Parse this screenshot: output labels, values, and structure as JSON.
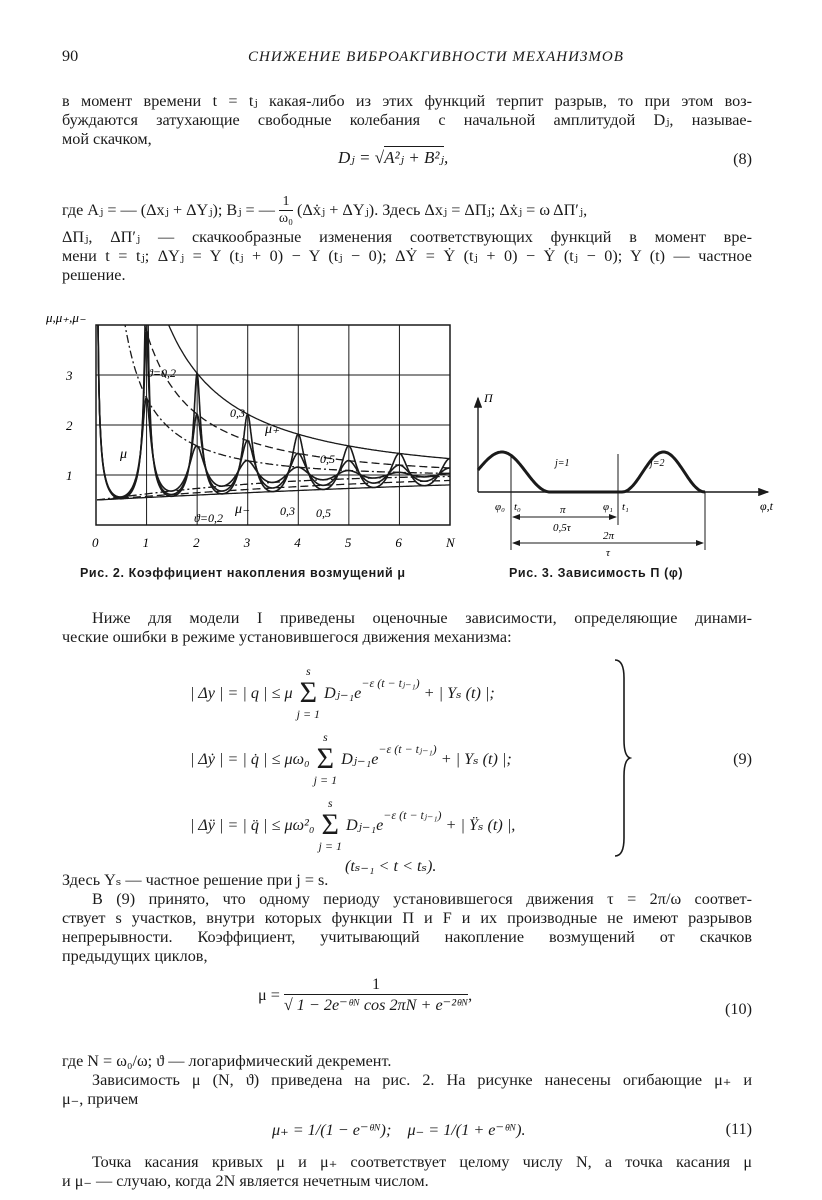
{
  "header": {
    "page_number": "90",
    "running_title": "СНИЖЕНИЕ ВИБРОАКГИВНОСТИ МЕХАНИЗМОВ"
  },
  "para1": {
    "l1": "в момент времени t = tⱼ какая-либо из этих функций терпит разрыв, то при этом воз-",
    "l2": "буждаются затухающие свободные колебания с начальной амплитудой Dⱼ, называе-",
    "l3": "мой скачком,"
  },
  "eq8": {
    "lhs": "Dⱼ = √",
    "rad": "A²ⱼ + B²ⱼ",
    "tail": ",",
    "no": "(8)"
  },
  "para2": {
    "l1a": "где  Aⱼ = — (Δxⱼ + ΔYⱼ);  Bⱼ = —",
    "frac_num": "1",
    "frac_den": "ω₀",
    "l1b": "(Δẋⱼ + ΔYⱼ).  Здесь  Δxⱼ = ΔΠⱼ;  Δẋⱼ = ω ΔΠ′ⱼ,",
    "l2": "ΔΠⱼ, ΔΠ′ⱼ — скачкообразные изменения соответствующих функций в момент вре-",
    "l3": "мени t = tⱼ; ΔYⱼ = Y (tⱼ + 0) − Y (tⱼ − 0); ΔẎ = Ẏ (tⱼ + 0) − Ẏ (tⱼ − 0); Y (t) — частное",
    "l4": "решение."
  },
  "fig2": {
    "ylabel": "μ,μ₊,μ₋",
    "yticks": [
      "1",
      "2",
      "3"
    ],
    "xticks": [
      "0",
      "1",
      "2",
      "3",
      "4",
      "5",
      "6",
      "N"
    ],
    "labels": {
      "theta02_top": "ϑ=0,2",
      "theta03_top": "0,3",
      "mu_plus": "μ₊",
      "theta05_top": "0,5",
      "mu": "μ",
      "theta02_bot": "ϑ=0,2",
      "mu_minus": "μ₋",
      "theta03_bot": "0,3",
      "theta05_bot": "0,5"
    },
    "caption": "Рис. 2. Коэффициент накопления возмущений μ"
  },
  "chart_data": {
    "type": "line",
    "xlabel": "N",
    "ylabel": "μ,μ₊,μ₋",
    "xlim": [
      0,
      7
    ],
    "ylim": [
      0,
      4
    ],
    "grid": true,
    "series": [
      {
        "name": "ϑ=0,2",
        "theta": 0.2,
        "curves": [
          "μ",
          "μ₊",
          "μ₋"
        ]
      },
      {
        "name": "0,3",
        "theta": 0.3,
        "curves": [
          "μ",
          "μ₊",
          "μ₋"
        ]
      },
      {
        "name": "0,5",
        "theta": 0.5,
        "curves": [
          "μ",
          "μ₊",
          "μ₋"
        ]
      }
    ]
  },
  "fig3": {
    "ylabel": "Π",
    "xlabel": "φ,t",
    "phi0": "φ₀",
    "t0": "t₀",
    "phi1": "φ₁",
    "t1": "t₁",
    "j1": "j=1",
    "j2": "j=2",
    "pi": "π",
    "half_tau": "0,5τ",
    "two_pi": "2π",
    "tau": "τ",
    "caption": "Рис. 3. Зависимость Π (φ)"
  },
  "para3": {
    "l1": "Ниже для модели I приведены оценочные зависимости, определяющие динами-",
    "l2": "ческие ошибки в режиме установившегося движения механизма:"
  },
  "eq9": {
    "r1_lhs": "| Δy | = | q | ≤ μ",
    "r1_rhs": "Dⱼ₋₁e",
    "r1_exp": "−ε (t − tⱼ₋₁)",
    "r1_tail": "+ | Yₛ (t) |;",
    "r2_lhs": "| Δẏ | = | q̇ | ≤ μω₀",
    "r2_rhs": "Dⱼ₋₁e",
    "r2_exp": "−ε (t − tⱼ₋₁)",
    "r2_tail": "+ | Yₛ (t) |;",
    "r3_lhs": "| Δÿ | = | q̈ | ≤ μω²₀",
    "r3_rhs": "Dⱼ₋₁e",
    "r3_exp": "−ε (t − tⱼ₋₁)",
    "r3_tail": "+ | Ÿₛ (t) |,",
    "sum_top": "s",
    "sum_bottom": "j = 1",
    "sigma": "Σ",
    "condition": "(tₛ₋₁ < t < tₛ).",
    "no": "(9)"
  },
  "para4": {
    "l1": "Здесь Yₛ — частное решение при j = s.",
    "l2": "В (9) принято, что одному периоду установившегося движения τ = 2π/ω соответ-",
    "l3": "ствует s участков, внутри которых функции Π и F и их производные не имеют разрывов",
    "l4": "непрерывности. Коэффициент, учитывающий накопление возмущений от скачков",
    "l5": "предыдущих циклов,"
  },
  "eq10": {
    "lhs": "μ =",
    "num": "1",
    "den": "√ 1 − 2e⁻ᶿᴺ cos 2πN + e⁻²ᶿᴺ",
    "tail": ",",
    "no": "(10)"
  },
  "para5": {
    "l1": "где N = ω₀/ω; ϑ — логарифмический декремент.",
    "l2": "Зависимость μ (N, ϑ) приведена на рис. 2. На рисунке нанесены огибающие μ₊ и",
    "l3": "μ₋, причем"
  },
  "eq11": {
    "text": "μ₊ = 1/(1 − e⁻ᶿᴺ);    μ₋ = 1/(1 + e⁻ᶿᴺ).",
    "no": "(11)"
  },
  "para6": {
    "l1": "Точка касания кривых μ и μ₊ соответствует целому числу N, а точка касания μ",
    "l2": "и μ₋ — случаю, когда 2N является нечетным числом."
  }
}
